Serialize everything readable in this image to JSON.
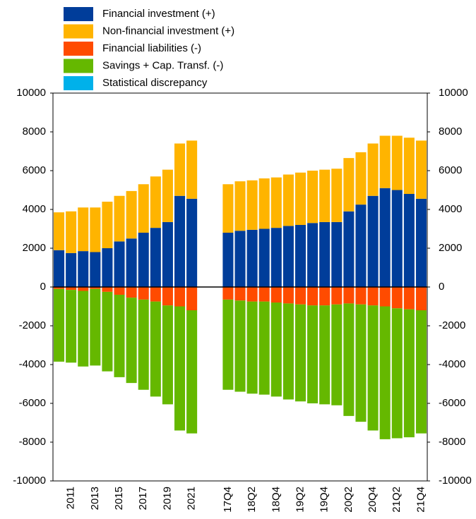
{
  "chart_data": {
    "type": "stacked_bar",
    "categories": [
      null,
      "2011",
      null,
      "2013",
      null,
      "2015",
      null,
      "2017",
      null,
      "2019",
      null,
      "2021",
      null,
      null,
      "17Q4",
      null,
      "18Q2",
      null,
      "18Q4",
      null,
      "19Q2",
      null,
      "19Q4",
      null,
      "20Q2",
      null,
      "20Q4",
      null,
      "21Q2",
      null,
      "21Q4"
    ],
    "series": [
      {
        "name": "Financial investment (+)",
        "color": "#003d9a",
        "values": [
          1900,
          1750,
          1850,
          1800,
          2000,
          2350,
          2500,
          2800,
          3050,
          3350,
          4700,
          4550,
          null,
          null,
          2800,
          2900,
          2950,
          3000,
          3050,
          3150,
          3200,
          3300,
          3350,
          3350,
          3900,
          4250,
          4700,
          5100,
          5000,
          4800,
          4550
        ]
      },
      {
        "name": "Non-financial investment (+)",
        "color": "#ffb400",
        "values": [
          1950,
          2150,
          2250,
          2300,
          2400,
          2350,
          2450,
          2500,
          2650,
          2700,
          2700,
          3000,
          null,
          null,
          2500,
          2550,
          2550,
          2600,
          2600,
          2650,
          2700,
          2700,
          2700,
          2750,
          2750,
          2700,
          2700,
          2700,
          2800,
          2900,
          3000
        ]
      },
      {
        "name": "Financial liabilities (-)",
        "color": "#ff4b00",
        "values": [
          -100,
          -150,
          -200,
          -100,
          -250,
          -400,
          -550,
          -650,
          -750,
          -950,
          -1000,
          -1200,
          null,
          null,
          -650,
          -700,
          -750,
          -750,
          -800,
          -850,
          -900,
          -950,
          -950,
          -900,
          -850,
          -900,
          -950,
          -1000,
          -1100,
          -1150,
          -1200
        ]
      },
      {
        "name": "Savings + Cap. Transf. (-)",
        "color": "#65b800",
        "values": [
          -3750,
          -3750,
          -3900,
          -3950,
          -4100,
          -4250,
          -4400,
          -4650,
          -4900,
          -5100,
          -6400,
          -6350,
          null,
          null,
          -4650,
          -4700,
          -4750,
          -4800,
          -4850,
          -4950,
          -5000,
          -5050,
          -5100,
          -5200,
          -5800,
          -6050,
          -6450,
          -6850,
          -6700,
          -6600,
          -6350
        ]
      },
      {
        "name": "Statistical discrepancy",
        "color": "#00b1ea",
        "values": [
          0,
          0,
          0,
          0,
          0,
          0,
          0,
          0,
          0,
          0,
          0,
          0,
          null,
          null,
          0,
          0,
          0,
          0,
          0,
          0,
          0,
          0,
          0,
          0,
          0,
          0,
          0,
          0,
          0,
          0,
          0
        ]
      }
    ],
    "ylim": [
      -10000,
      10000
    ],
    "yticks": [
      -10000,
      -8000,
      -6000,
      -4000,
      -2000,
      0,
      2000,
      4000,
      6000,
      8000,
      10000
    ],
    "y2lim": [
      -10000,
      10000
    ],
    "y2ticks": [
      -10000,
      -8000,
      -6000,
      -4000,
      -2000,
      0,
      2000,
      4000,
      6000,
      8000,
      10000
    ],
    "grid": false
  }
}
